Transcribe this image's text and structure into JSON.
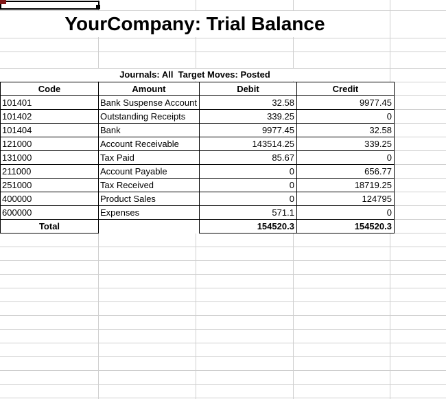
{
  "title": "YourCompany: Trial Balance",
  "subtitle": "Journals: All  Target Moves: Posted",
  "table": {
    "headers": [
      "Code",
      "Amount",
      "Debit",
      "Credit"
    ],
    "rows": [
      {
        "code": "101401",
        "account": "Bank Suspense Account",
        "debit": "32.58",
        "credit": "9977.45"
      },
      {
        "code": "101402",
        "account": "Outstanding Receipts",
        "debit": "339.25",
        "credit": "0"
      },
      {
        "code": "101404",
        "account": "Bank",
        "debit": "9977.45",
        "credit": "32.58"
      },
      {
        "code": "121000",
        "account": "Account Receivable",
        "debit": "143514.25",
        "credit": "339.25"
      },
      {
        "code": "131000",
        "account": "Tax Paid",
        "debit": "85.67",
        "credit": "0"
      },
      {
        "code": "211000",
        "account": "Account Payable",
        "debit": "0",
        "credit": "656.77"
      },
      {
        "code": "251000",
        "account": "Tax Received",
        "debit": "0",
        "credit": "18719.25"
      },
      {
        "code": "400000",
        "account": "Product Sales",
        "debit": "0",
        "credit": "124795"
      },
      {
        "code": "600000",
        "account": "Expenses",
        "debit": "571.1",
        "credit": "0"
      }
    ],
    "total": {
      "label": "Total",
      "debit": "154520.3",
      "credit": "154520.3"
    }
  },
  "colors": {
    "grid": "#cfcfcf",
    "cell_border": "#000000",
    "selection_border": "#000000",
    "corner_marker": "#801818"
  }
}
